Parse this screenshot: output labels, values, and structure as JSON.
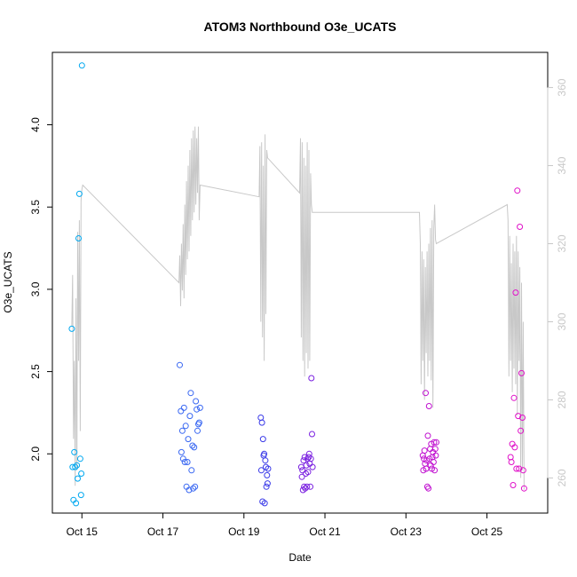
{
  "chart_data": {
    "type": "scatter",
    "title": "ATOM3 Northbound O3e_UCATS",
    "xlabel": "Date",
    "ylabel": "O3e_UCATS",
    "xlim": [
      "2017-10-14T06:30",
      "2017-10-26T12:00"
    ],
    "ylim": [
      1.64,
      4.44
    ],
    "y2lim": [
      251,
      369
    ],
    "x_ticks": [
      {
        "date": "2017-10-15T00:00",
        "label": "Oct 15"
      },
      {
        "date": "2017-10-17T00:00",
        "label": "Oct 17"
      },
      {
        "date": "2017-10-19T00:00",
        "label": "Oct 19"
      },
      {
        "date": "2017-10-21T00:00",
        "label": "Oct 21"
      },
      {
        "date": "2017-10-23T00:00",
        "label": "Oct 23"
      },
      {
        "date": "2017-10-25T00:00",
        "label": "Oct 25"
      }
    ],
    "y_ticks": [
      {
        "value": 2.0,
        "label": "2.0"
      },
      {
        "value": 2.5,
        "label": "2.5"
      },
      {
        "value": 3.0,
        "label": "3.0"
      },
      {
        "value": 3.5,
        "label": "3.5"
      },
      {
        "value": 4.0,
        "label": "4.0"
      }
    ],
    "y2_ticks": [
      {
        "value": 260,
        "label": "260"
      },
      {
        "value": 280,
        "label": "280"
      },
      {
        "value": 300,
        "label": "300"
      },
      {
        "value": 320,
        "label": "320"
      },
      {
        "value": 340,
        "label": "340"
      },
      {
        "value": 360,
        "label": "360"
      }
    ],
    "grid": false,
    "legend": "none",
    "point_colors": [
      "#00a8f0",
      "#3a68f2",
      "#3a3ae8",
      "#7a20e0",
      "#c010d0",
      "#e010c8"
    ],
    "line_color": "#c8c8c8",
    "points": [
      {
        "x": "2017-10-14T18:00",
        "y": 2.76,
        "c": "#00a8f0"
      },
      {
        "x": "2017-10-14T18:30",
        "y": 1.92,
        "c": "#00a8f0"
      },
      {
        "x": "2017-10-14T19:00",
        "y": 1.72,
        "c": "#00a8f0"
      },
      {
        "x": "2017-10-14T19:30",
        "y": 2.01,
        "c": "#00a8f0"
      },
      {
        "x": "2017-10-14T20:00",
        "y": 1.92,
        "c": "#00a8f0"
      },
      {
        "x": "2017-10-14T20:30",
        "y": 1.7,
        "c": "#00a8f0"
      },
      {
        "x": "2017-10-14T21:00",
        "y": 1.93,
        "c": "#00a8f0"
      },
      {
        "x": "2017-10-14T21:30",
        "y": 1.85,
        "c": "#00a8f0"
      },
      {
        "x": "2017-10-14T22:00",
        "y": 3.31,
        "c": "#00a8f0"
      },
      {
        "x": "2017-10-14T22:30",
        "y": 3.58,
        "c": "#00a8f0"
      },
      {
        "x": "2017-10-14T23:00",
        "y": 1.97,
        "c": "#00a8f0"
      },
      {
        "x": "2017-10-14T23:30",
        "y": 1.75,
        "c": "#00a8f0"
      },
      {
        "x": "2017-10-14T23:40",
        "y": 1.88,
        "c": "#00a8f0"
      },
      {
        "x": "2017-10-15T00:00",
        "y": 4.36,
        "c": "#00a8f0"
      },
      {
        "x": "2017-10-17T10:00",
        "y": 2.54,
        "c": "#3a68f2"
      },
      {
        "x": "2017-10-17T10:40",
        "y": 2.26,
        "c": "#3a68f2"
      },
      {
        "x": "2017-10-17T11:00",
        "y": 2.01,
        "c": "#3a68f2"
      },
      {
        "x": "2017-10-17T11:30",
        "y": 2.14,
        "c": "#3a68f2"
      },
      {
        "x": "2017-10-17T12:00",
        "y": 1.97,
        "c": "#3a68f2"
      },
      {
        "x": "2017-10-17T12:30",
        "y": 2.28,
        "c": "#3a68f2"
      },
      {
        "x": "2017-10-17T13:00",
        "y": 1.95,
        "c": "#3a68f2"
      },
      {
        "x": "2017-10-17T13:30",
        "y": 2.17,
        "c": "#3a68f2"
      },
      {
        "x": "2017-10-17T14:00",
        "y": 1.8,
        "c": "#3a68f2"
      },
      {
        "x": "2017-10-17T14:30",
        "y": 1.95,
        "c": "#3a68f2"
      },
      {
        "x": "2017-10-17T15:00",
        "y": 2.09,
        "c": "#3a68f2"
      },
      {
        "x": "2017-10-17T15:30",
        "y": 1.78,
        "c": "#3a68f2"
      },
      {
        "x": "2017-10-17T16:00",
        "y": 2.23,
        "c": "#3a68f2"
      },
      {
        "x": "2017-10-17T16:30",
        "y": 2.37,
        "c": "#3a68f2"
      },
      {
        "x": "2017-10-17T17:00",
        "y": 1.9,
        "c": "#3a68f2"
      },
      {
        "x": "2017-10-17T17:30",
        "y": 2.05,
        "c": "#3a68f2"
      },
      {
        "x": "2017-10-17T18:00",
        "y": 1.79,
        "c": "#3a68f2"
      },
      {
        "x": "2017-10-17T18:30",
        "y": 2.04,
        "c": "#3a68f2"
      },
      {
        "x": "2017-10-17T19:00",
        "y": 1.8,
        "c": "#3a68f2"
      },
      {
        "x": "2017-10-17T19:30",
        "y": 2.32,
        "c": "#3a68f2"
      },
      {
        "x": "2017-10-17T20:00",
        "y": 2.27,
        "c": "#3a68f2"
      },
      {
        "x": "2017-10-17T20:30",
        "y": 2.14,
        "c": "#3a68f2"
      },
      {
        "x": "2017-10-17T21:00",
        "y": 2.18,
        "c": "#3a68f2"
      },
      {
        "x": "2017-10-17T21:30",
        "y": 2.19,
        "c": "#3a68f2"
      },
      {
        "x": "2017-10-17T22:00",
        "y": 2.28,
        "c": "#3a68f2"
      },
      {
        "x": "2017-10-19T10:00",
        "y": 2.22,
        "c": "#3a3ae8"
      },
      {
        "x": "2017-10-19T10:20",
        "y": 1.9,
        "c": "#3a3ae8"
      },
      {
        "x": "2017-10-19T10:40",
        "y": 2.19,
        "c": "#3a3ae8"
      },
      {
        "x": "2017-10-19T11:00",
        "y": 1.71,
        "c": "#3a3ae8"
      },
      {
        "x": "2017-10-19T11:20",
        "y": 2.09,
        "c": "#3a3ae8"
      },
      {
        "x": "2017-10-19T11:40",
        "y": 1.99,
        "c": "#3a3ae8"
      },
      {
        "x": "2017-10-19T12:00",
        "y": 2.0,
        "c": "#3a3ae8"
      },
      {
        "x": "2017-10-19T12:20",
        "y": 1.7,
        "c": "#3a3ae8"
      },
      {
        "x": "2017-10-19T12:40",
        "y": 1.96,
        "c": "#3a3ae8"
      },
      {
        "x": "2017-10-19T13:00",
        "y": 1.92,
        "c": "#3a3ae8"
      },
      {
        "x": "2017-10-19T13:20",
        "y": 1.8,
        "c": "#3a3ae8"
      },
      {
        "x": "2017-10-19T13:40",
        "y": 1.87,
        "c": "#3a3ae8"
      },
      {
        "x": "2017-10-19T14:00",
        "y": 1.82,
        "c": "#3a3ae8"
      },
      {
        "x": "2017-10-19T14:20",
        "y": 1.91,
        "c": "#3a3ae8"
      },
      {
        "x": "2017-10-20T10:00",
        "y": 1.92,
        "c": "#7a20e0"
      },
      {
        "x": "2017-10-20T10:20",
        "y": 1.86,
        "c": "#7a20e0"
      },
      {
        "x": "2017-10-20T10:40",
        "y": 1.9,
        "c": "#7a20e0"
      },
      {
        "x": "2017-10-20T11:00",
        "y": 1.78,
        "c": "#7a20e0"
      },
      {
        "x": "2017-10-20T11:20",
        "y": 1.96,
        "c": "#7a20e0"
      },
      {
        "x": "2017-10-20T11:40",
        "y": 1.8,
        "c": "#7a20e0"
      },
      {
        "x": "2017-10-20T12:00",
        "y": 1.98,
        "c": "#7a20e0"
      },
      {
        "x": "2017-10-20T12:20",
        "y": 1.79,
        "c": "#7a20e0"
      },
      {
        "x": "2017-10-20T12:40",
        "y": 1.88,
        "c": "#7a20e0"
      },
      {
        "x": "2017-10-20T13:00",
        "y": 1.93,
        "c": "#7a20e0"
      },
      {
        "x": "2017-10-20T13:20",
        "y": 1.8,
        "c": "#7a20e0"
      },
      {
        "x": "2017-10-20T13:40",
        "y": 1.97,
        "c": "#7a20e0"
      },
      {
        "x": "2017-10-20T14:00",
        "y": 1.89,
        "c": "#7a20e0"
      },
      {
        "x": "2017-10-20T14:20",
        "y": 1.98,
        "c": "#7a20e0"
      },
      {
        "x": "2017-10-20T14:40",
        "y": 2.0,
        "c": "#7a20e0"
      },
      {
        "x": "2017-10-20T15:00",
        "y": 1.94,
        "c": "#7a20e0"
      },
      {
        "x": "2017-10-20T15:20",
        "y": 1.8,
        "c": "#7a20e0"
      },
      {
        "x": "2017-10-20T15:40",
        "y": 1.97,
        "c": "#7a20e0"
      },
      {
        "x": "2017-10-20T16:00",
        "y": 2.46,
        "c": "#7a20e0"
      },
      {
        "x": "2017-10-20T16:20",
        "y": 2.12,
        "c": "#7a20e0"
      },
      {
        "x": "2017-10-20T16:40",
        "y": 1.92,
        "c": "#7a20e0"
      },
      {
        "x": "2017-10-23T10:00",
        "y": 1.99,
        "c": "#c010d0"
      },
      {
        "x": "2017-10-23T10:20",
        "y": 1.9,
        "c": "#c010d0"
      },
      {
        "x": "2017-10-23T10:40",
        "y": 1.97,
        "c": "#c010d0"
      },
      {
        "x": "2017-10-23T11:00",
        "y": 2.02,
        "c": "#c010d0"
      },
      {
        "x": "2017-10-23T11:20",
        "y": 1.94,
        "c": "#c010d0"
      },
      {
        "x": "2017-10-23T11:40",
        "y": 2.37,
        "c": "#c010d0"
      },
      {
        "x": "2017-10-23T12:00",
        "y": 1.91,
        "c": "#c010d0"
      },
      {
        "x": "2017-10-23T12:20",
        "y": 1.96,
        "c": "#c010d0"
      },
      {
        "x": "2017-10-23T12:40",
        "y": 1.8,
        "c": "#c010d0"
      },
      {
        "x": "2017-10-23T13:00",
        "y": 2.11,
        "c": "#c010d0"
      },
      {
        "x": "2017-10-23T13:20",
        "y": 1.79,
        "c": "#c010d0"
      },
      {
        "x": "2017-10-23T13:40",
        "y": 2.29,
        "c": "#c010d0"
      },
      {
        "x": "2017-10-23T14:00",
        "y": 1.97,
        "c": "#c010d0"
      },
      {
        "x": "2017-10-23T14:20",
        "y": 2.03,
        "c": "#c010d0"
      },
      {
        "x": "2017-10-23T14:40",
        "y": 1.93,
        "c": "#c010d0"
      },
      {
        "x": "2017-10-23T15:00",
        "y": 2.06,
        "c": "#c010d0"
      },
      {
        "x": "2017-10-23T15:20",
        "y": 1.91,
        "c": "#c010d0"
      },
      {
        "x": "2017-10-23T15:40",
        "y": 1.98,
        "c": "#c010d0"
      },
      {
        "x": "2017-10-23T16:00",
        "y": 2.01,
        "c": "#c010d0"
      },
      {
        "x": "2017-10-23T16:20",
        "y": 1.95,
        "c": "#c010d0"
      },
      {
        "x": "2017-10-23T16:40",
        "y": 2.07,
        "c": "#c010d0"
      },
      {
        "x": "2017-10-23T17:00",
        "y": 1.9,
        "c": "#c010d0"
      },
      {
        "x": "2017-10-23T17:20",
        "y": 2.03,
        "c": "#c010d0"
      },
      {
        "x": "2017-10-23T17:40",
        "y": 1.99,
        "c": "#c010d0"
      },
      {
        "x": "2017-10-23T18:00",
        "y": 2.07,
        "c": "#c010d0"
      },
      {
        "x": "2017-10-25T14:00",
        "y": 1.98,
        "c": "#e010c8"
      },
      {
        "x": "2017-10-25T14:30",
        "y": 1.95,
        "c": "#e010c8"
      },
      {
        "x": "2017-10-25T15:00",
        "y": 2.06,
        "c": "#e010c8"
      },
      {
        "x": "2017-10-25T15:30",
        "y": 1.81,
        "c": "#e010c8"
      },
      {
        "x": "2017-10-25T16:00",
        "y": 2.34,
        "c": "#e010c8"
      },
      {
        "x": "2017-10-25T16:30",
        "y": 2.04,
        "c": "#e010c8"
      },
      {
        "x": "2017-10-25T17:00",
        "y": 2.98,
        "c": "#e010c8"
      },
      {
        "x": "2017-10-25T17:30",
        "y": 1.91,
        "c": "#e010c8"
      },
      {
        "x": "2017-10-25T18:00",
        "y": 3.6,
        "c": "#e010c8"
      },
      {
        "x": "2017-10-25T18:30",
        "y": 2.23,
        "c": "#e010c8"
      },
      {
        "x": "2017-10-25T19:00",
        "y": 1.91,
        "c": "#e010c8"
      },
      {
        "x": "2017-10-25T19:30",
        "y": 3.38,
        "c": "#e010c8"
      },
      {
        "x": "2017-10-25T20:00",
        "y": 2.14,
        "c": "#e010c8"
      },
      {
        "x": "2017-10-25T20:30",
        "y": 2.49,
        "c": "#e010c8"
      },
      {
        "x": "2017-10-25T21:00",
        "y": 2.22,
        "c": "#e010c8"
      },
      {
        "x": "2017-10-25T21:30",
        "y": 1.9,
        "c": "#e010c8"
      },
      {
        "x": "2017-10-25T22:00",
        "y": 1.79,
        "c": "#e010c8"
      }
    ],
    "line_series": {
      "x": [
        "2017-10-14T18:00",
        "2017-10-14T18:30",
        "2017-10-14T19:00",
        "2017-10-14T19:30",
        "2017-10-14T20:00",
        "2017-10-14T20:30",
        "2017-10-14T21:00",
        "2017-10-14T21:30",
        "2017-10-14T22:00",
        "2017-10-14T22:30",
        "2017-10-14T23:00",
        "2017-10-14T23:30",
        "2017-10-15T00:00",
        "2017-10-15T00:30",
        "2017-10-17T09:30",
        "2017-10-17T10:00",
        "2017-10-17T10:30",
        "2017-10-17T11:00",
        "2017-10-17T11:30",
        "2017-10-17T12:00",
        "2017-10-17T12:30",
        "2017-10-17T13:00",
        "2017-10-17T13:30",
        "2017-10-17T14:00",
        "2017-10-17T14:30",
        "2017-10-17T15:00",
        "2017-10-17T15:30",
        "2017-10-17T16:00",
        "2017-10-17T16:30",
        "2017-10-17T17:00",
        "2017-10-17T17:30",
        "2017-10-17T18:00",
        "2017-10-17T18:30",
        "2017-10-17T19:00",
        "2017-10-17T19:30",
        "2017-10-17T20:00",
        "2017-10-17T20:30",
        "2017-10-17T21:00",
        "2017-10-17T21:30",
        "2017-10-17T22:00",
        "2017-10-19T09:00",
        "2017-10-19T09:30",
        "2017-10-19T10:00",
        "2017-10-19T10:30",
        "2017-10-19T11:00",
        "2017-10-19T11:30",
        "2017-10-19T12:00",
        "2017-10-19T12:30",
        "2017-10-19T13:00",
        "2017-10-19T13:30",
        "2017-10-19T14:00",
        "2017-10-20T09:00",
        "2017-10-20T09:30",
        "2017-10-20T10:00",
        "2017-10-20T10:30",
        "2017-10-20T11:00",
        "2017-10-20T11:30",
        "2017-10-20T12:00",
        "2017-10-20T12:30",
        "2017-10-20T13:00",
        "2017-10-20T13:30",
        "2017-10-20T14:00",
        "2017-10-20T14:30",
        "2017-10-20T15:00",
        "2017-10-20T15:30",
        "2017-10-20T16:00",
        "2017-10-20T16:30",
        "2017-10-23T08:00",
        "2017-10-23T08:30",
        "2017-10-23T09:00",
        "2017-10-23T09:30",
        "2017-10-23T10:00",
        "2017-10-23T10:30",
        "2017-10-23T11:00",
        "2017-10-23T11:30",
        "2017-10-23T12:00",
        "2017-10-23T12:30",
        "2017-10-23T13:00",
        "2017-10-23T13:30",
        "2017-10-23T14:00",
        "2017-10-23T14:30",
        "2017-10-23T15:00",
        "2017-10-23T15:30",
        "2017-10-23T16:00",
        "2017-10-23T16:30",
        "2017-10-23T17:00",
        "2017-10-23T17:30",
        "2017-10-23T18:00",
        "2017-10-25T12:00",
        "2017-10-25T12:30",
        "2017-10-25T13:00",
        "2017-10-25T13:30",
        "2017-10-25T14:00",
        "2017-10-25T14:30",
        "2017-10-25T15:00",
        "2017-10-25T15:30",
        "2017-10-25T16:00",
        "2017-10-25T16:30",
        "2017-10-25T17:00",
        "2017-10-25T17:30",
        "2017-10-25T18:00",
        "2017-10-25T18:30",
        "2017-10-25T19:00",
        "2017-10-25T19:30",
        "2017-10-25T20:00",
        "2017-10-25T20:30",
        "2017-10-25T21:00",
        "2017-10-25T21:30",
        "2017-10-25T22:00"
      ],
      "y": [
        299,
        312,
        270,
        290,
        258,
        306,
        262,
        323,
        290,
        326,
        272,
        331,
        334,
        335,
        310,
        317,
        304,
        320,
        308,
        325,
        306,
        330,
        312,
        336,
        316,
        340,
        318,
        344,
        322,
        347,
        326,
        349,
        328,
        350,
        330,
        347,
        333,
        350,
        326,
        335,
        332,
        345,
        300,
        346,
        296,
        340,
        290,
        348,
        302,
        344,
        342,
        333,
        347,
        296,
        346,
        290,
        342,
        286,
        340,
        292,
        346,
        288,
        344,
        290,
        338,
        330,
        328,
        328,
        320,
        284,
        318,
        290,
        316,
        280,
        314,
        292,
        318,
        286,
        320,
        290,
        324,
        285,
        326,
        278,
        324,
        330,
        321,
        320,
        330,
        326,
        286,
        322,
        290,
        315,
        282,
        320,
        288,
        318,
        284,
        322,
        276,
        318,
        290,
        314,
        260,
        310,
        262,
        300,
        257
      ]
    }
  }
}
